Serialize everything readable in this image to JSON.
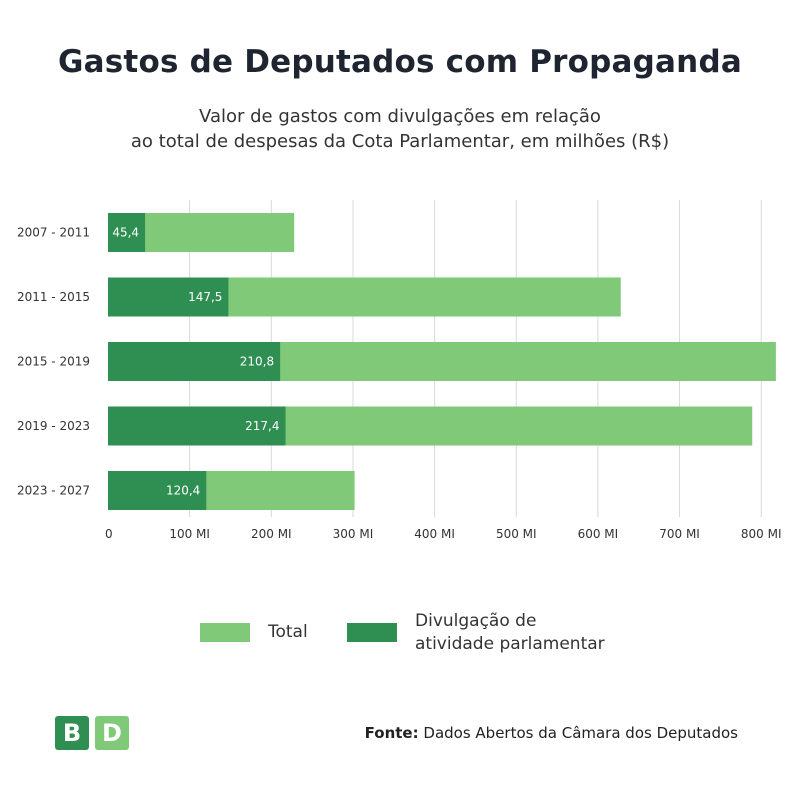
{
  "title": "Gastos de Deputados com Propaganda",
  "subtitle_line1": "Valor de gastos com divulgações em relação",
  "subtitle_line2": "ao total de despesas da Cota Parlamentar, em milhões (R$)",
  "colors": {
    "total": "#7fc978",
    "divulgacao": "#2f8f52",
    "grid": "#d9d9d9",
    "logo_b": "#2f8f52",
    "logo_d": "#7fc978"
  },
  "legend": {
    "total_label": "Total",
    "divulgacao_label_line1": "Divulgação de",
    "divulgacao_label_line2": "atividade parlamentar"
  },
  "logo": {
    "letter1": "B",
    "letter2": "D"
  },
  "source": {
    "label": "Fonte:",
    "text": "Dados Abertos da Câmara dos Deputados"
  },
  "chart_data": {
    "type": "bar",
    "orientation": "horizontal",
    "stacked_overlay": true,
    "categories": [
      "2007 - 2011",
      "2011 - 2015",
      "2015 - 2019",
      "2019 - 2023",
      "2023 - 2027"
    ],
    "series": [
      {
        "name": "Total",
        "values": [
          228,
          628,
          818,
          789,
          302
        ]
      },
      {
        "name": "Divulgação de atividade parlamentar",
        "values": [
          45.4,
          147.5,
          210.8,
          217.4,
          120.4
        ]
      }
    ],
    "data_labels": [
      "45,4",
      "147,5",
      "210,8",
      "217,4",
      "120,4"
    ],
    "x_ticks": [
      0,
      100,
      200,
      300,
      400,
      500,
      600,
      700,
      800
    ],
    "x_tick_labels": [
      "0",
      "100 MI",
      "200 MI",
      "300 MI",
      "400 MI",
      "500 MI",
      "600 MI",
      "700 MI",
      "800 MI"
    ],
    "xlim": [
      0,
      800
    ],
    "grid": true,
    "legend_position": "bottom"
  }
}
